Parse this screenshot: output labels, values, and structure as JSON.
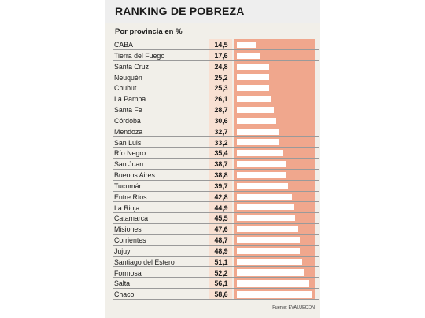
{
  "title": "RANKING DE POBREZA",
  "subtitle": "Por provincia en %",
  "source": "Fuente: EVALUECON",
  "colors": {
    "bar_panel": "#f0a78d",
    "value_column": "#f8e0d2",
    "bar": "#ffffff",
    "background": "#f1efe9"
  },
  "chart_data": {
    "type": "bar",
    "orientation": "horizontal",
    "title": "RANKING DE POBREZA",
    "subtitle": "Por provincia en %",
    "categories": [
      "CABA",
      "Tierra del Fuego",
      "Santa Cruz",
      "Neuquén",
      "Chubut",
      "La Pampa",
      "Santa Fe",
      "Córdoba",
      "Mendoza",
      "San Luis",
      "Río Negro",
      "San Juan",
      "Buenos Aires",
      "Tucumán",
      "Entre Ríos",
      "La Rioja",
      "Catamarca",
      "Misiones",
      "Corrientes",
      "Jujuy",
      "Santiago del Estero",
      "Formosa",
      "Salta",
      "Chaco"
    ],
    "value_labels": [
      "14,5",
      "17,6",
      "24,8",
      "25,2",
      "25,3",
      "26,1",
      "28,7",
      "30,6",
      "32,7",
      "33,2",
      "35,4",
      "38,7",
      "38,8",
      "39,7",
      "42,8",
      "44,9",
      "45,5",
      "47,6",
      "48,7",
      "48,9",
      "51,1",
      "52,2",
      "56,1",
      "58,6"
    ],
    "values": [
      14.5,
      17.6,
      24.8,
      25.2,
      25.3,
      26.1,
      28.7,
      30.6,
      32.7,
      33.2,
      35.4,
      38.7,
      38.8,
      39.7,
      42.8,
      44.9,
      45.5,
      47.6,
      48.7,
      48.9,
      51.1,
      52.2,
      56.1,
      58.6
    ],
    "xlim": [
      0,
      60
    ],
    "grid": false,
    "legend": "none"
  }
}
